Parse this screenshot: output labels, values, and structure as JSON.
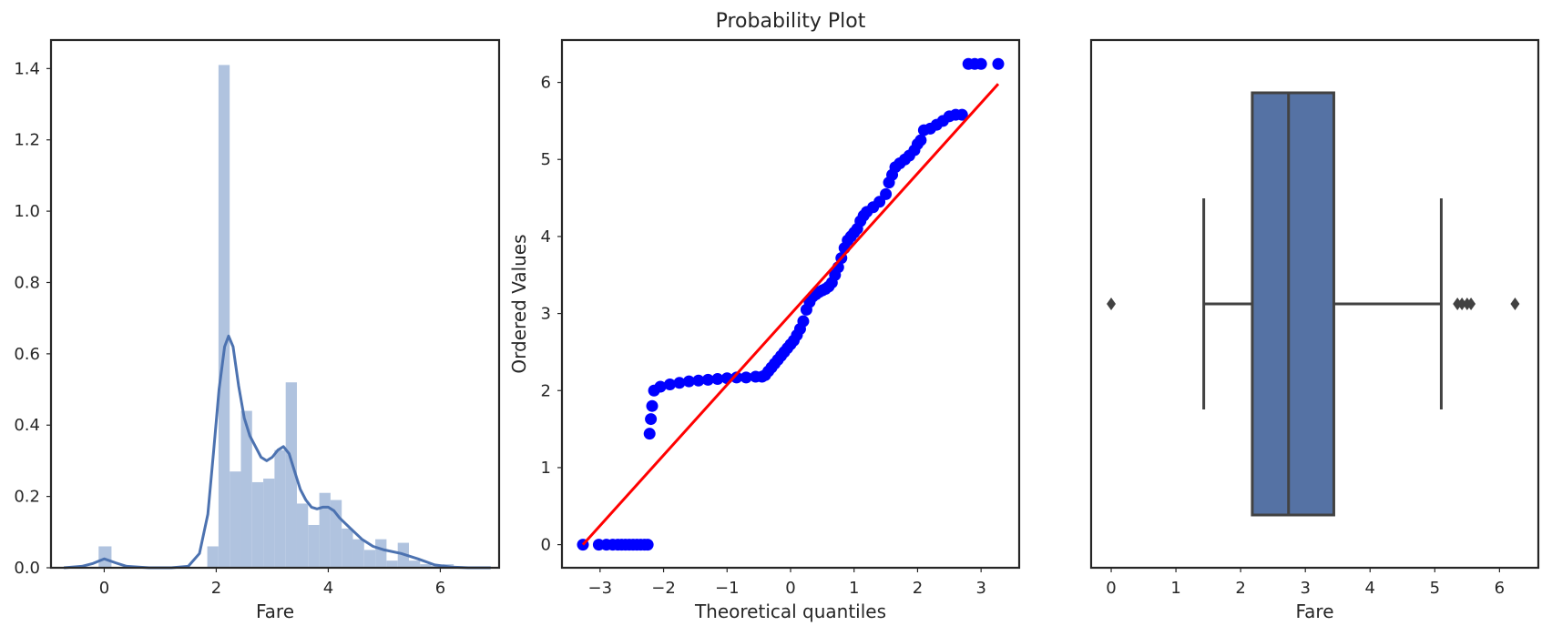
{
  "chart_data": [
    {
      "type": "bar",
      "subtype": "histogram-with-kde",
      "title": "",
      "xlabel": "Fare",
      "ylabel": "",
      "xlim": [
        -0.95,
        7.05
      ],
      "ylim": [
        0,
        1.48
      ],
      "xticks": [
        0,
        2,
        4,
        6
      ],
      "yticks": [
        0.0,
        0.2,
        0.4,
        0.6,
        0.8,
        1.0,
        1.2,
        1.4
      ],
      "grid": false,
      "colors": {
        "bars": "#b0c3df",
        "kde": "#4c72b0"
      },
      "bins": [
        {
          "x0": -0.1,
          "x1": 0.13,
          "value": 0.06
        },
        {
          "x0": 1.84,
          "x1": 2.04,
          "value": 0.06
        },
        {
          "x0": 2.04,
          "x1": 2.24,
          "value": 1.41
        },
        {
          "x0": 2.24,
          "x1": 2.44,
          "value": 0.27
        },
        {
          "x0": 2.44,
          "x1": 2.64,
          "value": 0.44
        },
        {
          "x0": 2.64,
          "x1": 2.84,
          "value": 0.24
        },
        {
          "x0": 2.84,
          "x1": 3.04,
          "value": 0.25
        },
        {
          "x0": 3.04,
          "x1": 3.24,
          "value": 0.33
        },
        {
          "x0": 3.24,
          "x1": 3.44,
          "value": 0.52
        },
        {
          "x0": 3.44,
          "x1": 3.64,
          "value": 0.18
        },
        {
          "x0": 3.64,
          "x1": 3.84,
          "value": 0.12
        },
        {
          "x0": 3.84,
          "x1": 4.04,
          "value": 0.21
        },
        {
          "x0": 4.04,
          "x1": 4.24,
          "value": 0.19
        },
        {
          "x0": 4.24,
          "x1": 4.44,
          "value": 0.11
        },
        {
          "x0": 4.44,
          "x1": 4.64,
          "value": 0.08
        },
        {
          "x0": 4.64,
          "x1": 4.84,
          "value": 0.05
        },
        {
          "x0": 4.84,
          "x1": 5.04,
          "value": 0.08
        },
        {
          "x0": 5.04,
          "x1": 5.24,
          "value": 0.02
        },
        {
          "x0": 5.24,
          "x1": 5.44,
          "value": 0.07
        },
        {
          "x0": 5.44,
          "x1": 5.64,
          "value": 0.02
        },
        {
          "x0": 5.64,
          "x1": 5.84,
          "value": 0.01
        },
        {
          "x0": 5.84,
          "x1": 6.04,
          "value": 0.005
        },
        {
          "x0": 6.04,
          "x1": 6.24,
          "value": 0.01
        }
      ],
      "kde": [
        [
          -0.72,
          0.0
        ],
        [
          -0.4,
          0.004
        ],
        [
          -0.2,
          0.012
        ],
        [
          0.0,
          0.025
        ],
        [
          0.2,
          0.014
        ],
        [
          0.4,
          0.004
        ],
        [
          0.8,
          0.0
        ],
        [
          1.2,
          0.0
        ],
        [
          1.5,
          0.004
        ],
        [
          1.7,
          0.04
        ],
        [
          1.85,
          0.15
        ],
        [
          1.95,
          0.32
        ],
        [
          2.05,
          0.5
        ],
        [
          2.15,
          0.62
        ],
        [
          2.22,
          0.65
        ],
        [
          2.3,
          0.62
        ],
        [
          2.4,
          0.51
        ],
        [
          2.5,
          0.42
        ],
        [
          2.6,
          0.37
        ],
        [
          2.7,
          0.34
        ],
        [
          2.8,
          0.31
        ],
        [
          2.9,
          0.3
        ],
        [
          3.0,
          0.31
        ],
        [
          3.1,
          0.33
        ],
        [
          3.2,
          0.34
        ],
        [
          3.3,
          0.32
        ],
        [
          3.4,
          0.27
        ],
        [
          3.5,
          0.22
        ],
        [
          3.6,
          0.19
        ],
        [
          3.7,
          0.17
        ],
        [
          3.8,
          0.165
        ],
        [
          3.9,
          0.17
        ],
        [
          4.0,
          0.17
        ],
        [
          4.1,
          0.16
        ],
        [
          4.2,
          0.14
        ],
        [
          4.4,
          0.11
        ],
        [
          4.6,
          0.08
        ],
        [
          4.8,
          0.06
        ],
        [
          5.0,
          0.05
        ],
        [
          5.3,
          0.04
        ],
        [
          5.6,
          0.025
        ],
        [
          5.9,
          0.008
        ],
        [
          6.2,
          0.002
        ],
        [
          6.5,
          0.0
        ],
        [
          6.9,
          0.0
        ]
      ]
    },
    {
      "type": "scatter",
      "subtype": "probability-plot",
      "title": "Probability Plot",
      "xlabel": "Theoretical quantiles",
      "ylabel": "Ordered Values",
      "xlim": [
        -3.6,
        3.6
      ],
      "ylim": [
        -0.3,
        6.55
      ],
      "xticks": [
        -3,
        -2,
        -1,
        0,
        1,
        2,
        3
      ],
      "yticks": [
        0,
        1,
        2,
        3,
        4,
        5,
        6
      ],
      "grid": false,
      "colors": {
        "points": "#0000ff",
        "fit_line": "#ff0000"
      },
      "fit_line": [
        [
          -3.27,
          0.0
        ],
        [
          3.27,
          5.98
        ]
      ],
      "points": [
        [
          -3.27,
          0.0
        ],
        [
          -3.02,
          0.0
        ],
        [
          -2.9,
          0.0
        ],
        [
          -2.8,
          0.0
        ],
        [
          -2.72,
          0.0
        ],
        [
          -2.66,
          0.0
        ],
        [
          -2.6,
          0.0
        ],
        [
          -2.54,
          0.0
        ],
        [
          -2.48,
          0.0
        ],
        [
          -2.42,
          0.0
        ],
        [
          -2.36,
          0.0
        ],
        [
          -2.3,
          0.0
        ],
        [
          -2.25,
          0.0
        ],
        [
          -2.22,
          1.44
        ],
        [
          -2.2,
          1.63
        ],
        [
          -2.18,
          1.8
        ],
        [
          -2.15,
          2.0
        ],
        [
          -2.05,
          2.05
        ],
        [
          -1.9,
          2.08
        ],
        [
          -1.75,
          2.1
        ],
        [
          -1.6,
          2.12
        ],
        [
          -1.45,
          2.13
        ],
        [
          -1.3,
          2.14
        ],
        [
          -1.15,
          2.15
        ],
        [
          -1.0,
          2.16
        ],
        [
          -0.85,
          2.17
        ],
        [
          -0.7,
          2.17
        ],
        [
          -0.55,
          2.18
        ],
        [
          -0.45,
          2.18
        ],
        [
          -0.4,
          2.2
        ],
        [
          -0.35,
          2.25
        ],
        [
          -0.3,
          2.3
        ],
        [
          -0.25,
          2.35
        ],
        [
          -0.2,
          2.4
        ],
        [
          -0.15,
          2.45
        ],
        [
          -0.1,
          2.5
        ],
        [
          -0.05,
          2.55
        ],
        [
          0.0,
          2.6
        ],
        [
          0.05,
          2.65
        ],
        [
          0.1,
          2.72
        ],
        [
          0.15,
          2.8
        ],
        [
          0.2,
          2.9
        ],
        [
          0.25,
          3.05
        ],
        [
          0.3,
          3.15
        ],
        [
          0.35,
          3.22
        ],
        [
          0.4,
          3.25
        ],
        [
          0.45,
          3.28
        ],
        [
          0.5,
          3.3
        ],
        [
          0.55,
          3.32
        ],
        [
          0.6,
          3.35
        ],
        [
          0.65,
          3.4
        ],
        [
          0.7,
          3.5
        ],
        [
          0.75,
          3.6
        ],
        [
          0.8,
          3.72
        ],
        [
          0.85,
          3.85
        ],
        [
          0.9,
          3.95
        ],
        [
          0.95,
          4.0
        ],
        [
          1.0,
          4.05
        ],
        [
          1.05,
          4.1
        ],
        [
          1.1,
          4.2
        ],
        [
          1.15,
          4.27
        ],
        [
          1.2,
          4.32
        ],
        [
          1.3,
          4.38
        ],
        [
          1.4,
          4.45
        ],
        [
          1.5,
          4.55
        ],
        [
          1.55,
          4.7
        ],
        [
          1.6,
          4.8
        ],
        [
          1.65,
          4.9
        ],
        [
          1.72,
          4.95
        ],
        [
          1.8,
          5.0
        ],
        [
          1.87,
          5.05
        ],
        [
          1.95,
          5.12
        ],
        [
          2.0,
          5.2
        ],
        [
          2.05,
          5.25
        ],
        [
          2.1,
          5.38
        ],
        [
          2.2,
          5.4
        ],
        [
          2.3,
          5.45
        ],
        [
          2.4,
          5.5
        ],
        [
          2.5,
          5.56
        ],
        [
          2.6,
          5.58
        ],
        [
          2.7,
          5.58
        ],
        [
          2.8,
          6.24
        ],
        [
          2.9,
          6.24
        ],
        [
          3.0,
          6.24
        ],
        [
          3.27,
          6.24
        ]
      ]
    },
    {
      "type": "box",
      "title": "",
      "xlabel": "Fare",
      "ylabel": "",
      "xlim": [
        -0.31,
        6.6
      ],
      "xticks": [
        0,
        1,
        2,
        3,
        4,
        5,
        6
      ],
      "grid": false,
      "colors": {
        "box": "#5572a4",
        "lines": "#424242"
      },
      "stats": {
        "whisker_low": 1.43,
        "q1": 2.18,
        "median": 2.74,
        "q3": 3.44,
        "whisker_high": 5.1
      },
      "outliers": [
        0.0,
        5.35,
        5.42,
        5.5,
        5.56,
        6.24
      ]
    }
  ]
}
